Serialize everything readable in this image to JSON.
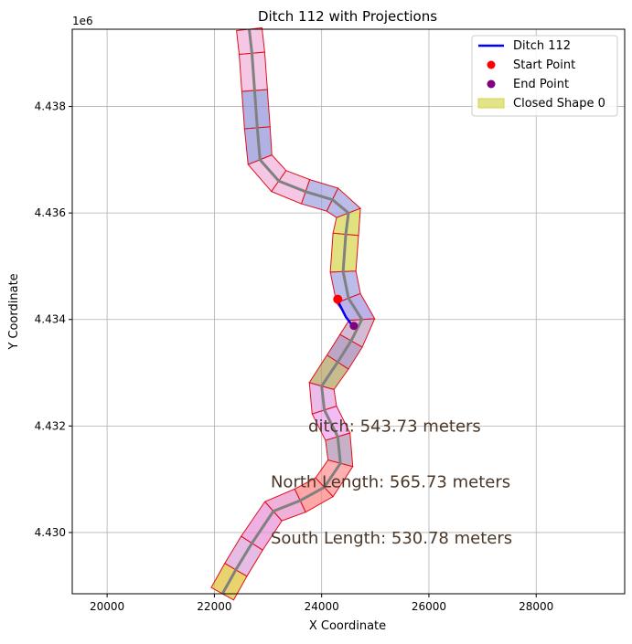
{
  "chart_data": {
    "type": "line",
    "title": "Ditch 112 with Projections",
    "xlabel": "X Coordinate",
    "ylabel": "Y Coordinate",
    "y_offset_label": "1e6",
    "xlim": [
      19350,
      29650
    ],
    "ylim": [
      4428.85,
      4439.45
    ],
    "x_ticks": [
      20000,
      22000,
      24000,
      26000,
      28000
    ],
    "y_ticks": [
      4430,
      4432,
      4434,
      4436,
      4438
    ],
    "y_tick_labels": [
      "4.430",
      "4.432",
      "4.434",
      "4.436",
      "4.438"
    ],
    "grid": true,
    "legend_position": "top-right",
    "legend": [
      {
        "label": "Ditch 112",
        "kind": "line",
        "color": "#0000ff"
      },
      {
        "label": "Start Point",
        "kind": "dot",
        "color": "#ff0000"
      },
      {
        "label": "End Point",
        "kind": "dot",
        "color": "#800080"
      },
      {
        "label": "Closed Shape 0",
        "kind": "patch",
        "color": "#d4d44a"
      }
    ],
    "centerline": [
      [
        22150,
        4428.85
      ],
      [
        22400,
        4429.3
      ],
      [
        22700,
        4429.8
      ],
      [
        23100,
        4430.4
      ],
      [
        23600,
        4430.6
      ],
      [
        24050,
        4430.85
      ],
      [
        24350,
        4431.3
      ],
      [
        24300,
        4431.8
      ],
      [
        24050,
        4432.3
      ],
      [
        24000,
        4432.75
      ],
      [
        24300,
        4433.2
      ],
      [
        24550,
        4433.6
      ],
      [
        24750,
        4434.0
      ],
      [
        24500,
        4434.4
      ],
      [
        24400,
        4434.9
      ],
      [
        24450,
        4435.6
      ],
      [
        24500,
        4436.0
      ],
      [
        24200,
        4436.25
      ],
      [
        23700,
        4436.4
      ],
      [
        23200,
        4436.6
      ],
      [
        22850,
        4437.0
      ],
      [
        22800,
        4437.6
      ],
      [
        22750,
        4438.3
      ],
      [
        22700,
        4439.0
      ],
      [
        22650,
        4439.45
      ]
    ],
    "ditch_line": [
      [
        24300,
        4434.35
      ],
      [
        24450,
        4434.05
      ],
      [
        24600,
        4433.85
      ]
    ],
    "start_point": [
      24300,
      4434.38
    ],
    "end_point": [
      24600,
      4433.88
    ],
    "annotations": [
      {
        "text": "ditch: 543.73 meters",
        "x": 23750,
        "y": 4432.0
      },
      {
        "text": "North Length: 565.73 meters",
        "x": 23050,
        "y": 4430.95
      },
      {
        "text": "South Length: 530.78 meters",
        "x": 23050,
        "y": 4429.9
      }
    ]
  }
}
